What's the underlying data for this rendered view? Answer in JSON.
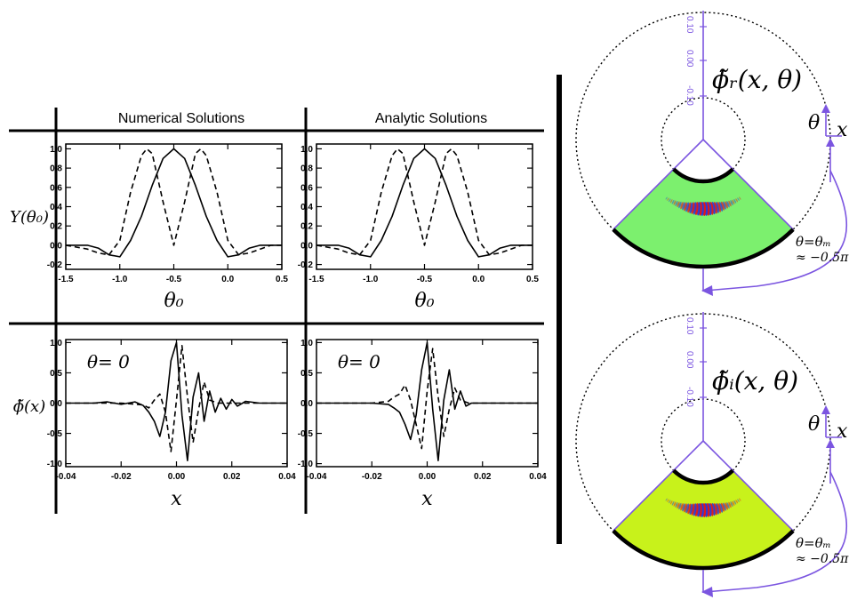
{
  "table": {
    "col_headers": [
      "Numerical Solutions",
      "Analytic Solutions"
    ],
    "row_labels": [
      "Y(θ₀)",
      "ϕ̃(x)"
    ]
  },
  "panel_annotation": "θ= 0",
  "colors": {
    "line": "#000000",
    "polar_axis": "#7b55e0",
    "wedge_real": "#7cf06e",
    "wedge_imag": "#c8f21b",
    "stripe_red": "#e01818",
    "stripe_blue": "#2a3ad8"
  },
  "chart_data": [
    {
      "id": "numerical-Y",
      "type": "line",
      "xlabel": "θ₀",
      "ylabel": "",
      "xlim": [
        -1.5,
        0.5
      ],
      "ylim": [
        -0.25,
        1.05
      ],
      "xticks": [
        "-1.5",
        "-1.0",
        "-0.5",
        "0.0",
        "0.5"
      ],
      "yticks": [
        "-0.2",
        "0.0",
        "0.2",
        "0.4",
        "0.6",
        "0.8",
        "1.0"
      ],
      "series": [
        {
          "style": "solid",
          "x": [
            -1.5,
            -1.3,
            -1.2,
            -1.1,
            -1.0,
            -0.9,
            -0.8,
            -0.7,
            -0.6,
            -0.5,
            -0.4,
            -0.3,
            -0.2,
            -0.1,
            0.0,
            0.1,
            0.2,
            0.3,
            0.4,
            0.5
          ],
          "y": [
            0.0,
            0.0,
            -0.03,
            -0.1,
            -0.12,
            0.05,
            0.3,
            0.62,
            0.9,
            1.0,
            0.9,
            0.62,
            0.3,
            0.05,
            -0.12,
            -0.1,
            -0.03,
            0.0,
            0.0,
            0.0
          ]
        },
        {
          "style": "dashed",
          "x": [
            -1.5,
            -1.3,
            -1.2,
            -1.1,
            -1.0,
            -0.9,
            -0.8,
            -0.75,
            -0.7,
            -0.6,
            -0.5,
            -0.4,
            -0.3,
            -0.25,
            -0.2,
            -0.1,
            0.0,
            0.1,
            0.2,
            0.3,
            0.4,
            0.5
          ],
          "y": [
            0.0,
            -0.04,
            -0.08,
            -0.1,
            0.05,
            0.55,
            0.93,
            1.0,
            0.95,
            0.45,
            0.0,
            0.45,
            0.95,
            1.0,
            0.93,
            0.55,
            0.05,
            -0.1,
            -0.08,
            -0.04,
            0.0,
            0.0
          ]
        }
      ]
    },
    {
      "id": "analytic-Y",
      "type": "line",
      "xlabel": "θ₀",
      "ylabel": "",
      "xlim": [
        -1.5,
        0.5
      ],
      "ylim": [
        -0.25,
        1.05
      ],
      "xticks": [
        "-1.5",
        "-1.0",
        "-0.5",
        "0.0",
        "0.5"
      ],
      "yticks": [
        "-0.2",
        "0.0",
        "0.2",
        "0.4",
        "0.6",
        "0.8",
        "1.0"
      ],
      "series": [
        {
          "style": "solid",
          "x": [
            -1.5,
            -1.3,
            -1.2,
            -1.1,
            -1.0,
            -0.9,
            -0.8,
            -0.7,
            -0.6,
            -0.5,
            -0.4,
            -0.3,
            -0.2,
            -0.1,
            0.0,
            0.1,
            0.2,
            0.3,
            0.4,
            0.5
          ],
          "y": [
            0.0,
            0.0,
            -0.03,
            -0.1,
            -0.12,
            0.05,
            0.3,
            0.62,
            0.9,
            1.0,
            0.9,
            0.62,
            0.3,
            0.05,
            -0.12,
            -0.1,
            -0.03,
            0.0,
            0.0,
            0.0
          ]
        },
        {
          "style": "dashed",
          "x": [
            -1.5,
            -1.3,
            -1.2,
            -1.1,
            -1.0,
            -0.9,
            -0.8,
            -0.75,
            -0.7,
            -0.6,
            -0.5,
            -0.4,
            -0.3,
            -0.25,
            -0.2,
            -0.1,
            0.0,
            0.1,
            0.2,
            0.3,
            0.4,
            0.5
          ],
          "y": [
            0.0,
            -0.04,
            -0.08,
            -0.1,
            0.05,
            0.55,
            0.93,
            1.0,
            0.95,
            0.45,
            0.0,
            0.45,
            0.95,
            1.0,
            0.93,
            0.55,
            0.05,
            -0.1,
            -0.08,
            -0.04,
            0.0,
            0.0
          ]
        }
      ]
    },
    {
      "id": "numerical-phi",
      "type": "line",
      "xlabel": "x",
      "ylabel": "",
      "xlim": [
        -0.04,
        0.04
      ],
      "ylim": [
        -1.05,
        1.05
      ],
      "xticks": [
        "-0.04",
        "-0.02",
        "0.00",
        "0.02",
        "0.04"
      ],
      "yticks": [
        "-1.0",
        "-0.5",
        "0.0",
        "0.5",
        "1.0"
      ],
      "series": [
        {
          "style": "solid",
          "x": [
            -0.04,
            -0.03,
            -0.025,
            -0.02,
            -0.015,
            -0.012,
            -0.01,
            -0.008,
            -0.006,
            -0.004,
            -0.002,
            0.0,
            0.002,
            0.004,
            0.006,
            0.008,
            0.01,
            0.012,
            0.014,
            0.016,
            0.018,
            0.02,
            0.022,
            0.025,
            0.03,
            0.035,
            0.04
          ],
          "y": [
            0.0,
            0.0,
            0.02,
            -0.02,
            0.02,
            -0.04,
            -0.15,
            -0.3,
            -0.55,
            -0.15,
            0.7,
            1.0,
            -0.2,
            -0.95,
            0.1,
            0.5,
            -0.3,
            0.2,
            -0.15,
            0.08,
            -0.1,
            0.06,
            -0.05,
            0.03,
            0.0,
            0.0,
            0.0
          ]
        },
        {
          "style": "dashed",
          "x": [
            -0.04,
            -0.02,
            -0.012,
            -0.01,
            -0.008,
            -0.006,
            -0.004,
            -0.002,
            0.0,
            0.002,
            0.004,
            0.006,
            0.008,
            0.01,
            0.012,
            0.015,
            0.02,
            0.04
          ],
          "y": [
            0.0,
            0.0,
            -0.03,
            -0.08,
            0.05,
            0.15,
            -0.15,
            -0.8,
            0.05,
            0.95,
            0.1,
            -0.65,
            -0.1,
            0.35,
            0.05,
            0.0,
            0.0,
            0.0
          ]
        }
      ]
    },
    {
      "id": "analytic-phi",
      "type": "line",
      "xlabel": "x",
      "ylabel": "",
      "xlim": [
        -0.04,
        0.04
      ],
      "ylim": [
        -1.05,
        1.05
      ],
      "xticks": [
        "-0.04",
        "-0.02",
        "0.00",
        "0.02",
        "0.04"
      ],
      "yticks": [
        "-1.0",
        "-0.5",
        "0.0",
        "0.5",
        "1.0"
      ],
      "series": [
        {
          "style": "solid",
          "x": [
            -0.04,
            -0.02,
            -0.014,
            -0.012,
            -0.01,
            -0.008,
            -0.006,
            -0.004,
            -0.002,
            0.0,
            0.002,
            0.004,
            0.006,
            0.008,
            0.01,
            0.012,
            0.014,
            0.016,
            0.02,
            0.04
          ],
          "y": [
            0.0,
            0.0,
            -0.02,
            -0.08,
            -0.15,
            -0.35,
            -0.6,
            -0.2,
            0.55,
            1.0,
            -0.1,
            -0.95,
            0.05,
            0.55,
            -0.1,
            0.2,
            -0.05,
            0.0,
            0.0,
            0.0
          ]
        },
        {
          "style": "dashed",
          "x": [
            -0.04,
            -0.02,
            -0.014,
            -0.012,
            -0.01,
            -0.008,
            -0.006,
            -0.004,
            -0.002,
            0.0,
            0.002,
            0.004,
            0.006,
            0.008,
            0.01,
            0.012,
            0.015,
            0.02,
            0.04
          ],
          "y": [
            0.0,
            0.0,
            0.03,
            0.1,
            0.15,
            0.3,
            0.05,
            -0.35,
            -0.75,
            0.2,
            0.9,
            0.1,
            -0.55,
            -0.1,
            0.25,
            0.05,
            0.0,
            0.0,
            0.0
          ]
        }
      ]
    }
  ],
  "polar": [
    {
      "id": "polar-real",
      "title": "ϕ̃ᵣ(x, θ)",
      "radial_ticks": [
        "0.10",
        "0.00",
        "-0.10"
      ],
      "theta_label": "θ",
      "x_label": "x",
      "annotation_line1": "θ=θₘ",
      "annotation_line2": "≈ −0.5π",
      "fill": "wedge_real"
    },
    {
      "id": "polar-imag",
      "title": "ϕ̃ᵢ(x, θ)",
      "radial_ticks": [
        "0.10",
        "0.00",
        "-0.10"
      ],
      "theta_label": "θ",
      "x_label": "x",
      "annotation_line1": "θ=θₘ",
      "annotation_line2": "≈ −0.5π",
      "fill": "wedge_imag"
    }
  ]
}
